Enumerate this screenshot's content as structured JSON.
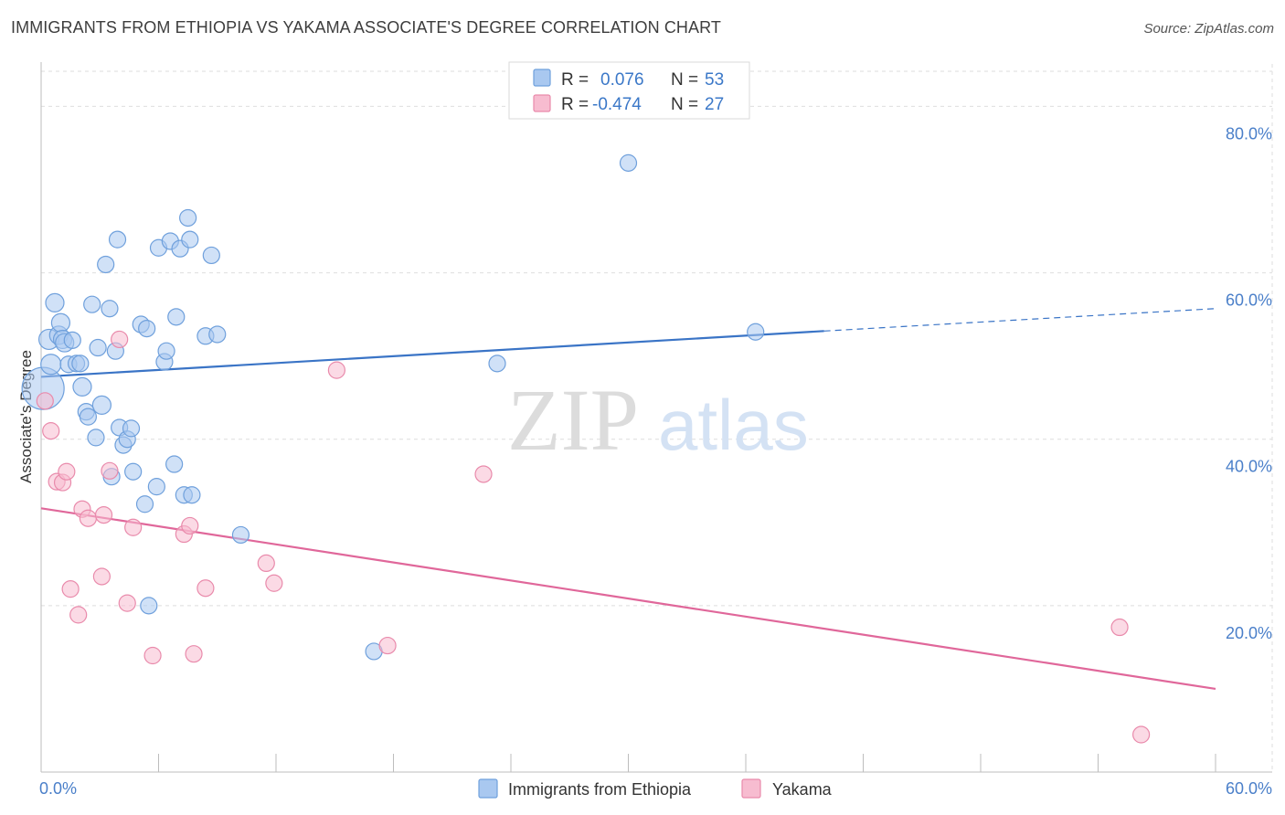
{
  "title": "IMMIGRANTS FROM ETHIOPIA VS YAKAMA ASSOCIATE'S DEGREE CORRELATION CHART",
  "source": "Source: ZipAtlas.com",
  "watermark": {
    "zip": "ZIP",
    "atlas": "atlas"
  },
  "colors": {
    "blue_fill": "#a9c8f0",
    "blue_stroke": "#6fa0dc",
    "blue_line": "#3a74c6",
    "pink_fill": "#f7bcd0",
    "pink_stroke": "#e98aab",
    "pink_line": "#e0679a",
    "grid": "#dedede",
    "tick_label": "#4a7fc9"
  },
  "legend": {
    "r_label": "R =",
    "n_label": "N =",
    "rows": [
      {
        "r": "0.076",
        "n": "53"
      },
      {
        "r": "-0.474",
        "n": "27"
      }
    ]
  },
  "chart_data": {
    "type": "scatter",
    "title": "IMMIGRANTS FROM ETHIOPIA VS YAKAMA ASSOCIATE'S DEGREE CORRELATION CHART",
    "xlabel": "",
    "ylabel": "Associate's Degree",
    "xlim": [
      0,
      60
    ],
    "ylim": [
      0,
      84
    ],
    "x_ticks": [
      "0.0%",
      "60.0%"
    ],
    "y_ticks": [
      {
        "value": 20,
        "label": "20.0%"
      },
      {
        "value": 40,
        "label": "40.0%"
      },
      {
        "value": 60,
        "label": "60.0%"
      },
      {
        "value": 80,
        "label": "80.0%"
      }
    ],
    "grid": true,
    "legend_position": "top-center",
    "series": [
      {
        "name": "Immigrants from Ethiopia",
        "color_key": "blue",
        "trend": {
          "x0": 0,
          "y0": 47.5,
          "x1": 40,
          "y1": 53.0,
          "dash_x1": 60,
          "dash_y1": 55.7
        },
        "points": [
          [
            0.1,
            46.1,
            22
          ],
          [
            0.4,
            52.0,
            10
          ],
          [
            0.5,
            49.0,
            10
          ],
          [
            0.7,
            56.4,
            9
          ],
          [
            0.9,
            52.5,
            9
          ],
          [
            1.0,
            54.0,
            9
          ],
          [
            1.1,
            52.0,
            9
          ],
          [
            1.2,
            51.6,
            9
          ],
          [
            1.4,
            49.0,
            8
          ],
          [
            1.6,
            51.9,
            8
          ],
          [
            1.8,
            49.1,
            8
          ],
          [
            2.0,
            49.1,
            8
          ],
          [
            2.1,
            46.3,
            9
          ],
          [
            2.3,
            43.3,
            8
          ],
          [
            2.4,
            42.7,
            8
          ],
          [
            2.6,
            56.2,
            8
          ],
          [
            2.8,
            40.2,
            8
          ],
          [
            2.9,
            51.0,
            8
          ],
          [
            3.1,
            44.1,
            9
          ],
          [
            3.3,
            61.0,
            8
          ],
          [
            3.5,
            55.7,
            8
          ],
          [
            3.6,
            35.5,
            8
          ],
          [
            3.8,
            50.6,
            8
          ],
          [
            3.9,
            64.0,
            8
          ],
          [
            4.0,
            41.4,
            8
          ],
          [
            4.2,
            39.3,
            8
          ],
          [
            4.4,
            40.0,
            8
          ],
          [
            4.6,
            41.3,
            8
          ],
          [
            4.7,
            36.1,
            8
          ],
          [
            5.1,
            53.8,
            8
          ],
          [
            5.3,
            32.2,
            8
          ],
          [
            5.4,
            53.3,
            8
          ],
          [
            5.5,
            20.0,
            8
          ],
          [
            5.9,
            34.3,
            8
          ],
          [
            6.0,
            63.0,
            8
          ],
          [
            6.3,
            49.3,
            8
          ],
          [
            6.4,
            50.6,
            8
          ],
          [
            6.6,
            63.8,
            8
          ],
          [
            6.8,
            37.0,
            8
          ],
          [
            6.9,
            54.7,
            8
          ],
          [
            7.1,
            62.9,
            8
          ],
          [
            7.3,
            33.3,
            8
          ],
          [
            7.5,
            66.6,
            8
          ],
          [
            7.6,
            64.0,
            8
          ],
          [
            7.7,
            33.3,
            8
          ],
          [
            8.4,
            52.4,
            8
          ],
          [
            8.7,
            62.1,
            8
          ],
          [
            9.0,
            52.6,
            8
          ],
          [
            10.2,
            28.5,
            8
          ],
          [
            17.0,
            14.5,
            8
          ],
          [
            23.3,
            49.1,
            8
          ],
          [
            30.0,
            73.2,
            8
          ],
          [
            36.5,
            52.9,
            8
          ]
        ]
      },
      {
        "name": "Yakama",
        "color_key": "pink",
        "trend": {
          "x0": 0,
          "y0": 31.7,
          "x1": 60,
          "y1": 10.0
        },
        "points": [
          [
            0.2,
            44.6,
            8
          ],
          [
            0.5,
            41.0,
            8
          ],
          [
            0.8,
            34.9,
            8
          ],
          [
            1.1,
            34.8,
            8
          ],
          [
            1.3,
            36.1,
            8
          ],
          [
            1.5,
            22.0,
            8
          ],
          [
            1.9,
            18.9,
            8
          ],
          [
            2.1,
            31.6,
            8
          ],
          [
            2.4,
            30.5,
            8
          ],
          [
            3.1,
            23.5,
            8
          ],
          [
            3.2,
            30.9,
            8
          ],
          [
            3.5,
            36.2,
            8
          ],
          [
            4.0,
            52.0,
            8
          ],
          [
            4.4,
            20.3,
            8
          ],
          [
            4.7,
            29.4,
            8
          ],
          [
            5.7,
            14.0,
            8
          ],
          [
            7.3,
            28.6,
            8
          ],
          [
            7.6,
            29.6,
            8
          ],
          [
            7.8,
            14.2,
            8
          ],
          [
            8.4,
            22.1,
            8
          ],
          [
            11.5,
            25.1,
            8
          ],
          [
            11.9,
            22.7,
            8
          ],
          [
            15.1,
            48.3,
            8
          ],
          [
            17.7,
            15.2,
            8
          ],
          [
            22.6,
            35.8,
            8
          ],
          [
            55.1,
            17.4,
            8
          ],
          [
            56.2,
            4.5,
            8
          ]
        ]
      }
    ]
  }
}
